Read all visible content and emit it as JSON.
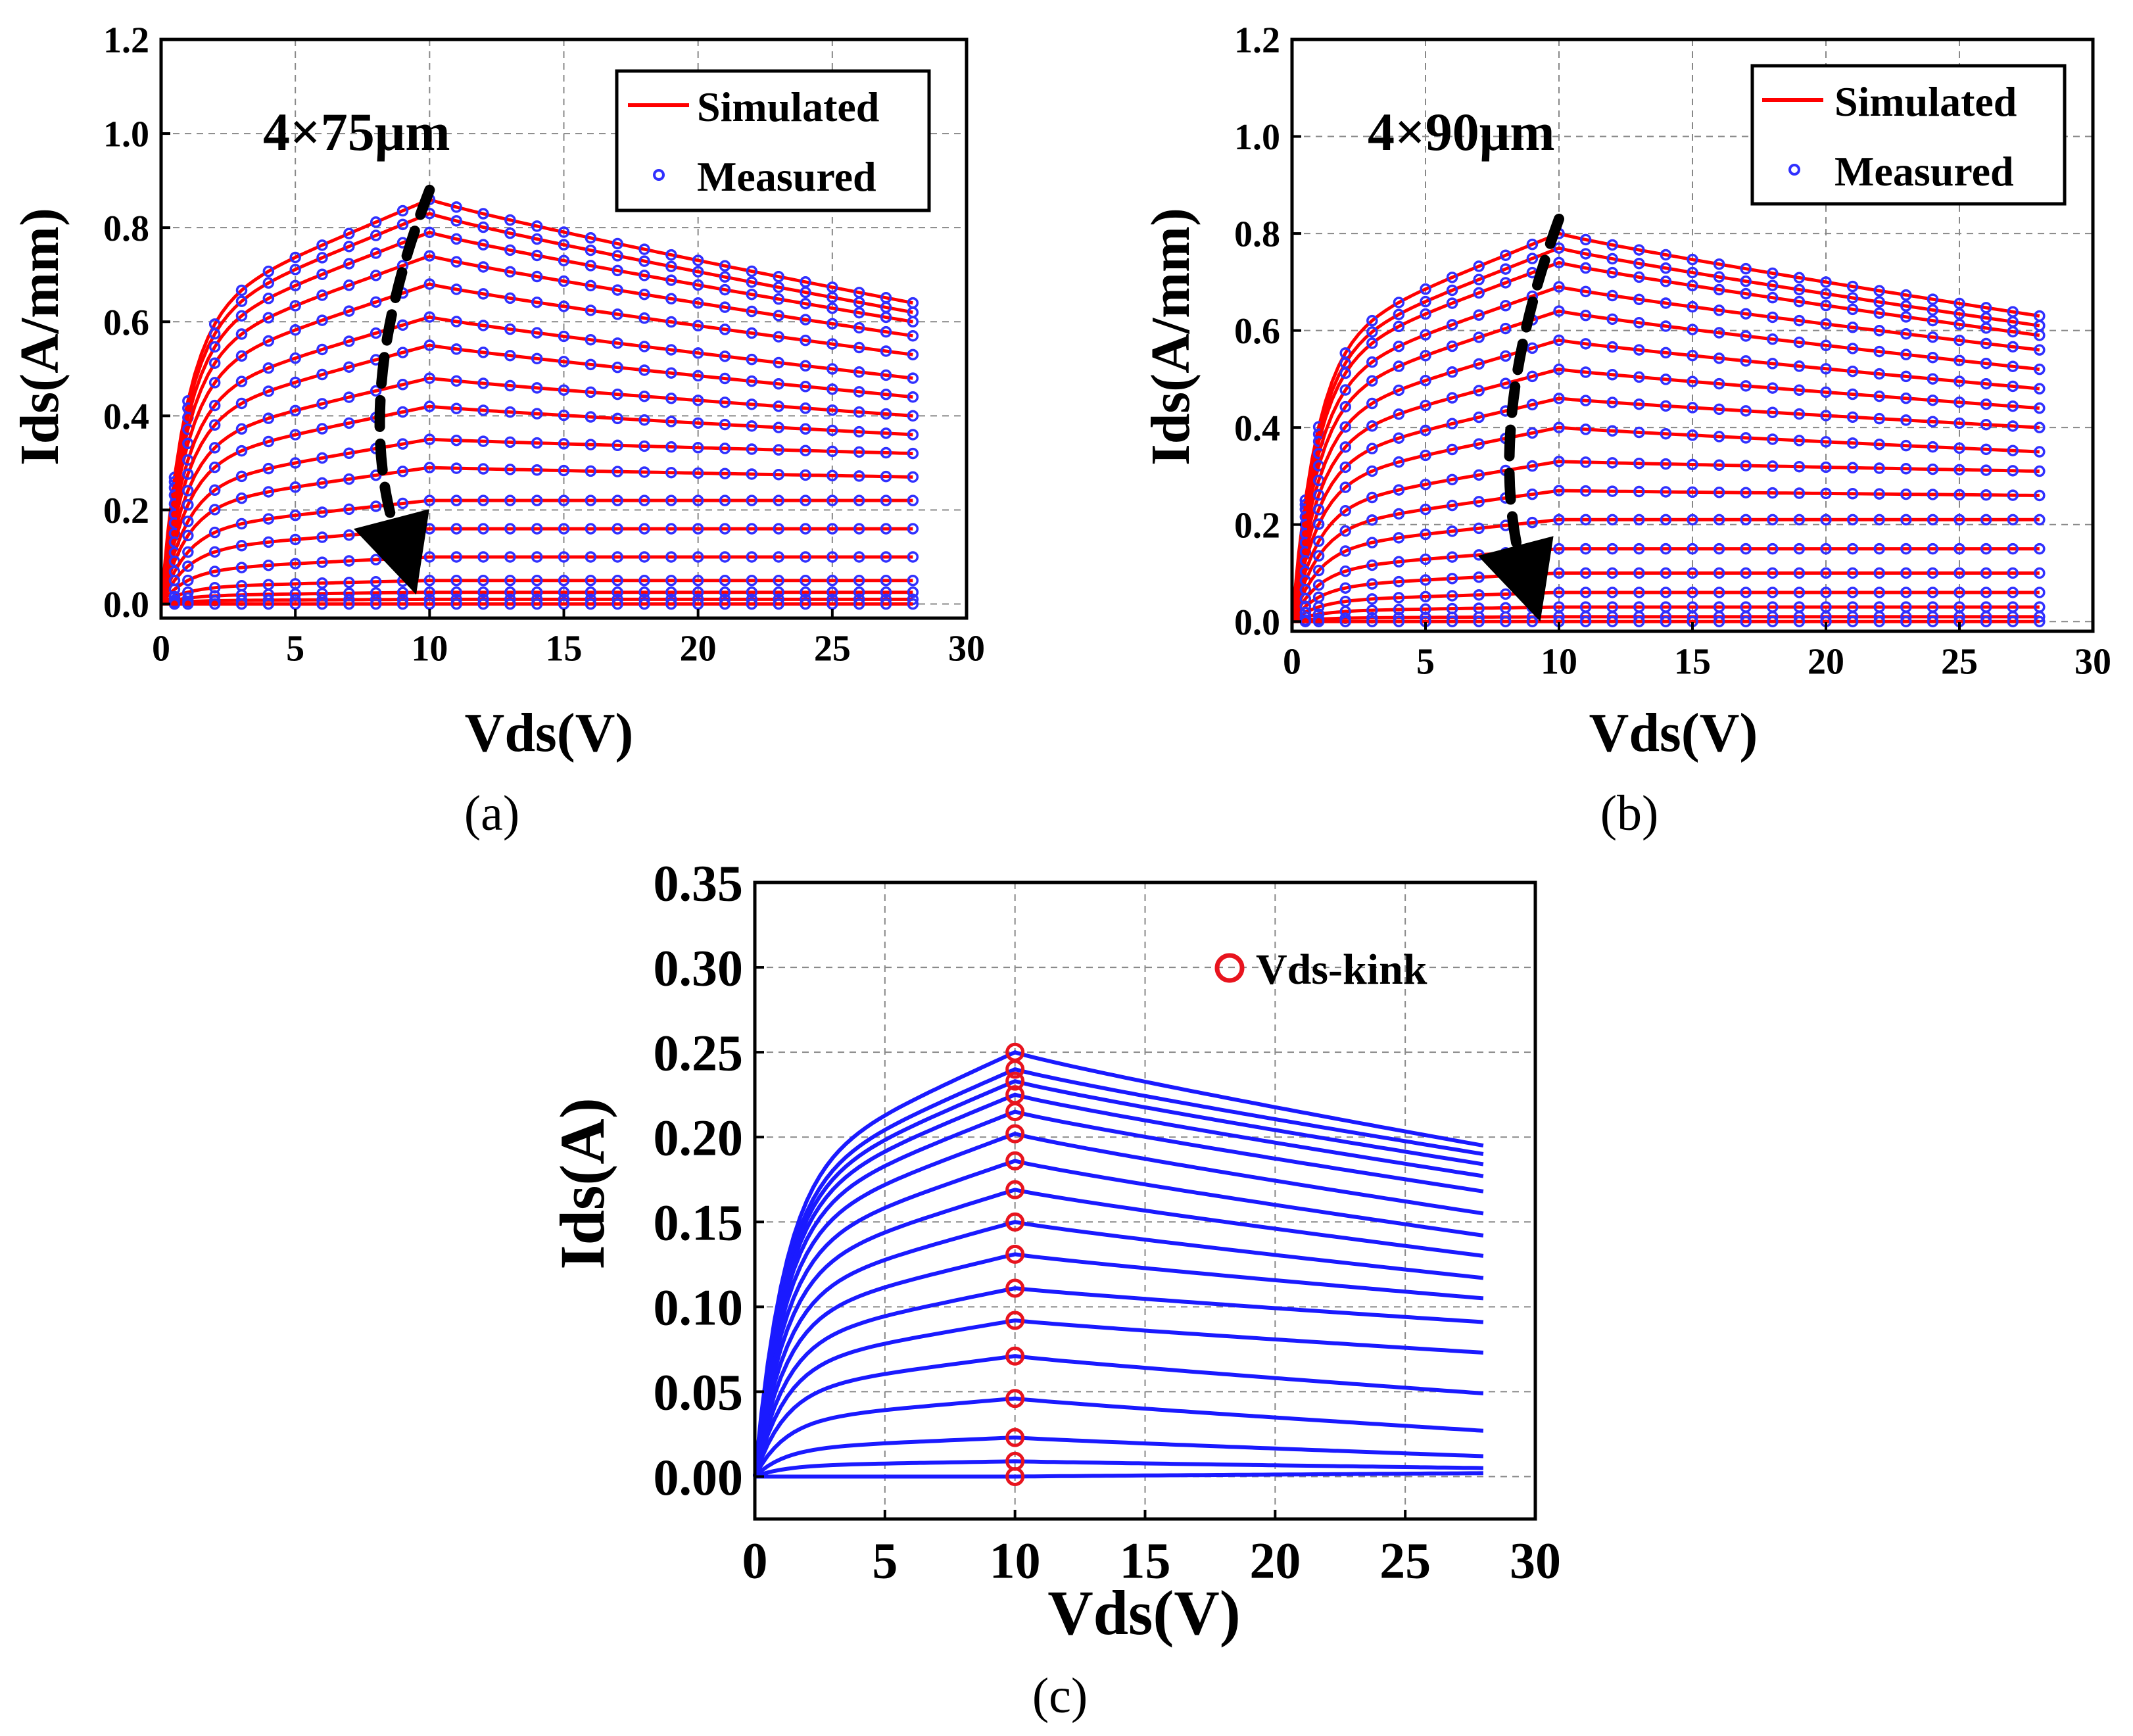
{
  "chart_data": [
    {
      "type": "line",
      "panel": "a",
      "caption": "(a)",
      "annotation": "4×75μm",
      "xlabel": "Vds(V)",
      "ylabel": "Ids(A/mm)",
      "xlim": [
        0,
        30
      ],
      "ylim": [
        -0.03,
        1.2
      ],
      "xticks": [
        0,
        5,
        10,
        15,
        20,
        25,
        30
      ],
      "xtick_labels": [
        "0",
        "5",
        "10",
        "15",
        "20",
        "25",
        "30"
      ],
      "yticks": [
        0.0,
        0.2,
        0.4,
        0.6,
        0.8,
        1.0,
        1.2
      ],
      "ytick_labels": [
        "0.0",
        "0.2",
        "0.4",
        "0.6",
        "0.8",
        "1.0",
        "1.2"
      ],
      "grid": true,
      "legend": {
        "position": "top-right",
        "entries": [
          "Simulated",
          "Measured"
        ]
      },
      "series_names": {
        "simulated": "Simulated",
        "measured": "Measured"
      },
      "vds_max": 28,
      "kink_vds": 10,
      "curve_peak_ids": [
        0.86,
        0.83,
        0.79,
        0.74,
        0.68,
        0.61,
        0.55,
        0.48,
        0.42,
        0.35,
        0.29,
        0.22,
        0.16,
        0.1,
        0.05,
        0.025,
        0.01,
        0.0
      ],
      "curve_end_ids": [
        0.64,
        0.62,
        0.6,
        0.57,
        0.53,
        0.48,
        0.44,
        0.4,
        0.36,
        0.32,
        0.27,
        0.22,
        0.16,
        0.1,
        0.05,
        0.025,
        0.01,
        0.0
      ],
      "arrow": {
        "from": [
          10,
          0.88
        ],
        "to": [
          9.5,
          0.02
        ]
      },
      "colors": {
        "simulated": "#ff0000",
        "measured": "#3030ff",
        "arrow": "#000000"
      }
    },
    {
      "type": "line",
      "panel": "b",
      "caption": "(b)",
      "annotation": "4×90μm",
      "xlabel": "Vds(V)",
      "ylabel": "Ids(A/mm)",
      "xlim": [
        0,
        30
      ],
      "ylim": [
        -0.02,
        1.2
      ],
      "xticks": [
        0,
        5,
        10,
        15,
        20,
        25,
        30
      ],
      "xtick_labels": [
        "0",
        "5",
        "10",
        "15",
        "20",
        "25",
        "30"
      ],
      "yticks": [
        0.0,
        0.2,
        0.4,
        0.6,
        0.8,
        1.0,
        1.2
      ],
      "ytick_labels": [
        "0.0",
        "0.2",
        "0.4",
        "0.6",
        "0.8",
        "1.0",
        "1.2"
      ],
      "grid": true,
      "legend": {
        "position": "top-right",
        "entries": [
          "Simulated",
          "Measured"
        ]
      },
      "series_names": {
        "simulated": "Simulated",
        "measured": "Measured"
      },
      "vds_max": 28,
      "kink_vds": 10,
      "curve_peak_ids": [
        0.8,
        0.77,
        0.74,
        0.69,
        0.64,
        0.58,
        0.52,
        0.46,
        0.4,
        0.33,
        0.27,
        0.21,
        0.15,
        0.1,
        0.06,
        0.03,
        0.01,
        0.0
      ],
      "curve_end_ids": [
        0.63,
        0.61,
        0.59,
        0.56,
        0.52,
        0.48,
        0.44,
        0.4,
        0.35,
        0.31,
        0.26,
        0.21,
        0.15,
        0.1,
        0.06,
        0.03,
        0.01,
        0.0
      ],
      "arrow": {
        "from": [
          10,
          0.83
        ],
        "to": [
          9.3,
          0.0
        ]
      },
      "colors": {
        "simulated": "#ff0000",
        "measured": "#3030ff",
        "arrow": "#000000"
      }
    },
    {
      "type": "line",
      "panel": "c",
      "caption": "(c)",
      "xlabel": "Vds(V)",
      "ylabel": "Ids(A)",
      "xlim": [
        0,
        30
      ],
      "ylim": [
        -0.025,
        0.35
      ],
      "xticks": [
        0,
        5,
        10,
        15,
        20,
        25,
        30
      ],
      "xtick_labels": [
        "0",
        "5",
        "10",
        "15",
        "20",
        "25",
        "30"
      ],
      "yticks": [
        0.0,
        0.05,
        0.1,
        0.15,
        0.2,
        0.25,
        0.3,
        0.35
      ],
      "ytick_labels": [
        "0.00",
        "0.05",
        "0.10",
        "0.15",
        "0.20",
        "0.25",
        "0.30",
        "0.35"
      ],
      "grid": true,
      "legend": {
        "position": "top-right",
        "entries": [
          "Vds-kink"
        ]
      },
      "series_names": {
        "curves": "Ids",
        "kink": "Vds-kink"
      },
      "vds_max": 28,
      "kink_vds": 10,
      "curve_peak_ids": [
        0.25,
        0.24,
        0.233,
        0.225,
        0.215,
        0.202,
        0.186,
        0.169,
        0.15,
        0.131,
        0.111,
        0.092,
        0.071,
        0.046,
        0.023,
        0.009,
        0.0
      ],
      "curve_end_ids": [
        0.195,
        0.19,
        0.184,
        0.177,
        0.168,
        0.155,
        0.142,
        0.13,
        0.117,
        0.105,
        0.091,
        0.073,
        0.049,
        0.027,
        0.012,
        0.005,
        0.002
      ],
      "colors": {
        "curves": "#1a1aff",
        "kink": "#e8141e"
      }
    }
  ]
}
